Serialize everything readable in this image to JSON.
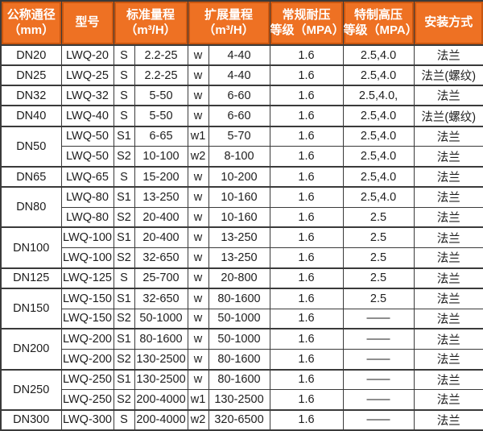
{
  "style": {
    "header_bg": "#ee7123",
    "header_inner_border": "#c9560f",
    "header_text": "#ffffff",
    "grid_color": "#3a3a3a",
    "body_bg": "#ffffff",
    "body_text": "#1d1d1d"
  },
  "chart_data": {
    "type": "table",
    "header_cells": [
      {
        "line1": "公称通径",
        "line2": "（mm）"
      },
      {
        "line1": "型号",
        "line2": ""
      },
      {
        "line1": "标准量程",
        "line2": "（m³/H）"
      },
      {
        "line1": "扩展量程",
        "line2": "（m³/H）"
      },
      {
        "line1": "常规耐压",
        "line2": "等级（MPA）"
      },
      {
        "line1": "特制高压",
        "line2": "等级（MPA）"
      },
      {
        "line1": "安装方式",
        "line2": ""
      }
    ],
    "rows": [
      {
        "dn": "DN20",
        "dn_rowspan": 1,
        "model": "LWQ-20",
        "s": "S",
        "std": "2.2-25",
        "w": "w",
        "ext": "4-40",
        "reg": "1.6",
        "high": "2.5,4.0",
        "install": "法兰"
      },
      {
        "dn": "DN25",
        "dn_rowspan": 1,
        "model": "LWQ-25",
        "s": "S",
        "std": "2.2-25",
        "w": "w",
        "ext": "4-40",
        "reg": "1.6",
        "high": "2.5,4.0",
        "install": "法兰(螺纹)"
      },
      {
        "dn": "DN32",
        "dn_rowspan": 1,
        "model": "LWQ-32",
        "s": "S",
        "std": "5-50",
        "w": "w",
        "ext": "6-60",
        "reg": "1.6",
        "high": "2.5,4.0,",
        "install": "法兰"
      },
      {
        "dn": "DN40",
        "dn_rowspan": 1,
        "model": "LWQ-40",
        "s": "S",
        "std": "5-50",
        "w": "w",
        "ext": "6-60",
        "reg": "1.6",
        "high": "2.5,4.0",
        "install": "法兰(螺纹)"
      },
      {
        "dn": "DN50",
        "dn_rowspan": 2,
        "model": "LWQ-50",
        "s": "S1",
        "std": "6-65",
        "w": "w1",
        "ext": "5-70",
        "reg": "1.6",
        "high": "2.5,4.0",
        "install": "法兰"
      },
      {
        "model": "LWQ-50",
        "s": "S2",
        "std": "10-100",
        "w": "w2",
        "ext": "8-100",
        "reg": "1.6",
        "high": "2.5,4.0",
        "install": "法兰"
      },
      {
        "dn": "DN65",
        "dn_rowspan": 1,
        "model": "LWQ-65",
        "s": "S",
        "std": "15-200",
        "w": "w",
        "ext": "10-200",
        "reg": "1.6",
        "high": "2.5,4.0",
        "install": "法兰"
      },
      {
        "dn": "DN80",
        "dn_rowspan": 2,
        "model": "LWQ-80",
        "s": "S1",
        "std": "13-250",
        "w": "w",
        "ext": "10-160",
        "reg": "1.6",
        "high": "2.5,4.0",
        "install": "法兰"
      },
      {
        "model": "LWQ-80",
        "s": "S2",
        "std": "20-400",
        "w": "w",
        "ext": "10-160",
        "reg": "1.6",
        "high": "2.5",
        "install": "法兰"
      },
      {
        "dn": "DN100",
        "dn_rowspan": 2,
        "model": "LWQ-100",
        "s": "S1",
        "std": "20-400",
        "w": "w",
        "ext": "13-250",
        "reg": "1.6",
        "high": "2.5",
        "install": "法兰"
      },
      {
        "model": "LWQ-100",
        "s": "S2",
        "std": "32-650",
        "w": "w",
        "ext": "13-250",
        "reg": "1.6",
        "high": "2.5",
        "install": "法兰"
      },
      {
        "dn": "DN125",
        "dn_rowspan": 1,
        "model": "LWQ-125",
        "s": "S",
        "std": "25-700",
        "w": "w",
        "ext": "20-800",
        "reg": "1.6",
        "high": "2.5",
        "install": "法兰"
      },
      {
        "dn": "DN150",
        "dn_rowspan": 2,
        "model": "LWQ-150",
        "s": "S1",
        "std": "32-650",
        "w": "w",
        "ext": "80-1600",
        "reg": "1.6",
        "high": "2.5",
        "install": "法兰"
      },
      {
        "model": "LWQ-150",
        "s": "S2",
        "std": "50-1000",
        "w": "w",
        "ext": "50-1000",
        "reg": "1.6",
        "high": "——",
        "install": "法兰"
      },
      {
        "dn": "DN200",
        "dn_rowspan": 2,
        "model": "LWQ-200",
        "s": "S1",
        "std": "80-1600",
        "w": "w",
        "ext": "50-1000",
        "reg": "1.6",
        "high": "——",
        "install": "法兰"
      },
      {
        "model": "LWQ-200",
        "s": "S2",
        "std": "130-2500",
        "w": "w",
        "ext": "80-1600",
        "reg": "1.6",
        "high": "——",
        "install": "法兰"
      },
      {
        "dn": "DN250",
        "dn_rowspan": 2,
        "model": "LWQ-250",
        "s": "S1",
        "std": "130-2500",
        "w": "w",
        "ext": "80-1600",
        "reg": "1.6",
        "high": "——",
        "install": "法兰"
      },
      {
        "model": "LWQ-250",
        "s": "S2",
        "std": "200-4000",
        "w": "w1",
        "ext": "130-2500",
        "reg": "1.6",
        "high": "——",
        "install": "法兰"
      },
      {
        "dn": "DN300",
        "dn_rowspan": 1,
        "model": "LWQ-300",
        "s": "S",
        "std": "200-4000",
        "w": "w2",
        "ext": "320-6500",
        "reg": "1.6",
        "high": "——",
        "install": "法兰"
      }
    ]
  }
}
